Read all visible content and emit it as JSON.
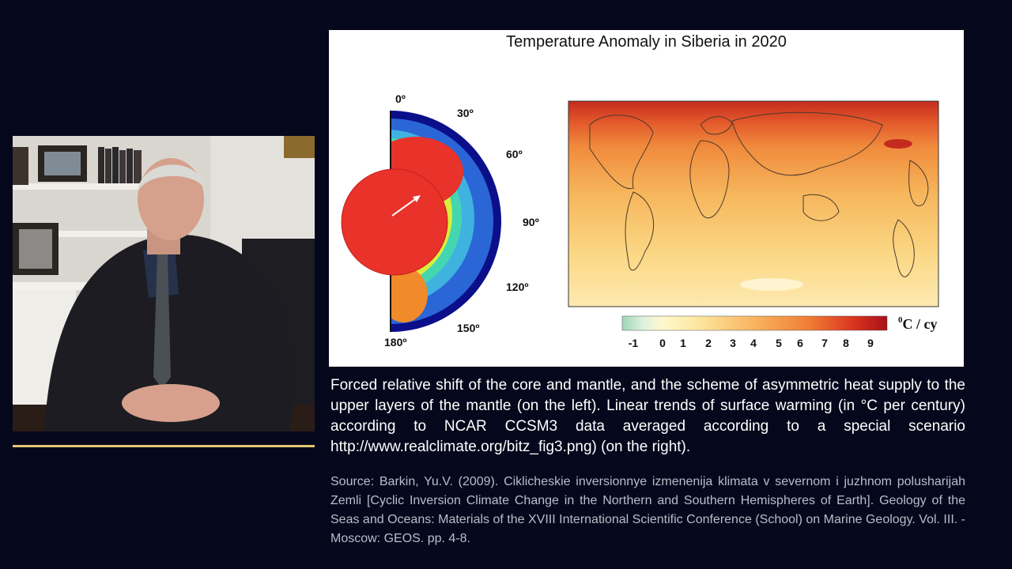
{
  "figure": {
    "title": "Temperature Anomaly in Siberia in 2020",
    "angle_labels": [
      "0º",
      "30º",
      "60º",
      "90º",
      "120º",
      "150º",
      "180º"
    ],
    "colorbar": {
      "ticks": [
        "-1",
        "0",
        "1",
        "2",
        "3",
        "4",
        "5",
        "6",
        "7",
        "8",
        "9"
      ],
      "unit": "0C / cy",
      "unit_super": "0",
      "unit_main": "C / cy"
    }
  },
  "caption": "Forced relative shift of the core and mantle, and the scheme of asymmetric heat supply to the upper layers of the mantle (on the left). Linear trends of surface warming (in °C per century) according to NCAR CCSM3 data averaged according to a special scenario http://www.realclimate.org/bitz_fig3.png) (on the right).",
  "source": "Source: Barkin, Yu.V. (2009). Ciklicheskie inversionnye izmenenija klimata v severnom i juzhnom polusharijah Zemli [Cyclic Inversion Climate Change in the Northern and Southern Hemispheres of Earth]. Geology of the Seas and Oceans: Materials of the XVIII International Scientific Conference (School) on Marine Geology. Vol. III. - Moscow: GEOS. pp. 4-8.",
  "colors": {
    "background": "#05081c",
    "accent_line": "#e3c770",
    "core": "#e8322a",
    "suit": "#1c1c22"
  }
}
